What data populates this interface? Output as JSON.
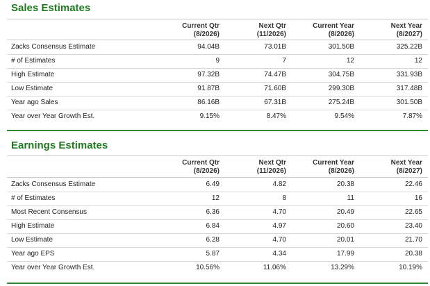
{
  "sales": {
    "title": "Sales Estimates",
    "headers": [
      {
        "line1": "Current Qtr",
        "line2": "(8/2026)"
      },
      {
        "line1": "Next Qtr",
        "line2": "(11/2026)"
      },
      {
        "line1": "Current Year",
        "line2": "(8/2026)"
      },
      {
        "line1": "Next Year",
        "line2": "(8/2027)"
      }
    ],
    "rows": [
      {
        "label": "Zacks Consensus Estimate",
        "values": [
          "94.04B",
          "73.01B",
          "301.50B",
          "325.22B"
        ]
      },
      {
        "label": "# of Estimates",
        "values": [
          "9",
          "7",
          "12",
          "12"
        ]
      },
      {
        "label": "High Estimate",
        "values": [
          "97.32B",
          "74.47B",
          "304.75B",
          "331.93B"
        ]
      },
      {
        "label": "Low Estimate",
        "values": [
          "91.87B",
          "71.60B",
          "299.30B",
          "317.48B"
        ]
      },
      {
        "label": "Year ago Sales",
        "values": [
          "86.16B",
          "67.31B",
          "275.24B",
          "301.50B"
        ]
      },
      {
        "label": "Year over Year Growth Est.",
        "values": [
          "9.15%",
          "8.47%",
          "9.54%",
          "7.87%"
        ]
      }
    ]
  },
  "earnings": {
    "title": "Earnings Estimates",
    "headers": [
      {
        "line1": "Current Qtr",
        "line2": "(8/2026)"
      },
      {
        "line1": "Next Qtr",
        "line2": "(11/2026)"
      },
      {
        "line1": "Current Year",
        "line2": "(8/2026)"
      },
      {
        "line1": "Next Year",
        "line2": "(8/2027)"
      }
    ],
    "rows": [
      {
        "label": "Zacks Consensus Estimate",
        "values": [
          "6.49",
          "4.82",
          "20.38",
          "22.46"
        ]
      },
      {
        "label": "# of Estimates",
        "values": [
          "12",
          "8",
          "11",
          "16"
        ]
      },
      {
        "label": "Most Recent Consensus",
        "values": [
          "6.36",
          "4.70",
          "20.49",
          "22.65"
        ]
      },
      {
        "label": "High Estimate",
        "values": [
          "6.84",
          "4.97",
          "20.60",
          "23.40"
        ]
      },
      {
        "label": "Low Estimate",
        "values": [
          "6.28",
          "4.70",
          "20.01",
          "21.70"
        ]
      },
      {
        "label": "Year ago EPS",
        "values": [
          "5.87",
          "4.34",
          "17.99",
          "20.38"
        ]
      },
      {
        "label": "Year over Year Growth Est.",
        "values": [
          "10.56%",
          "11.06%",
          "13.29%",
          "10.19%"
        ]
      }
    ]
  },
  "colors": {
    "title_green": "#1f7a1f",
    "rule_green": "#2e8b2e"
  }
}
